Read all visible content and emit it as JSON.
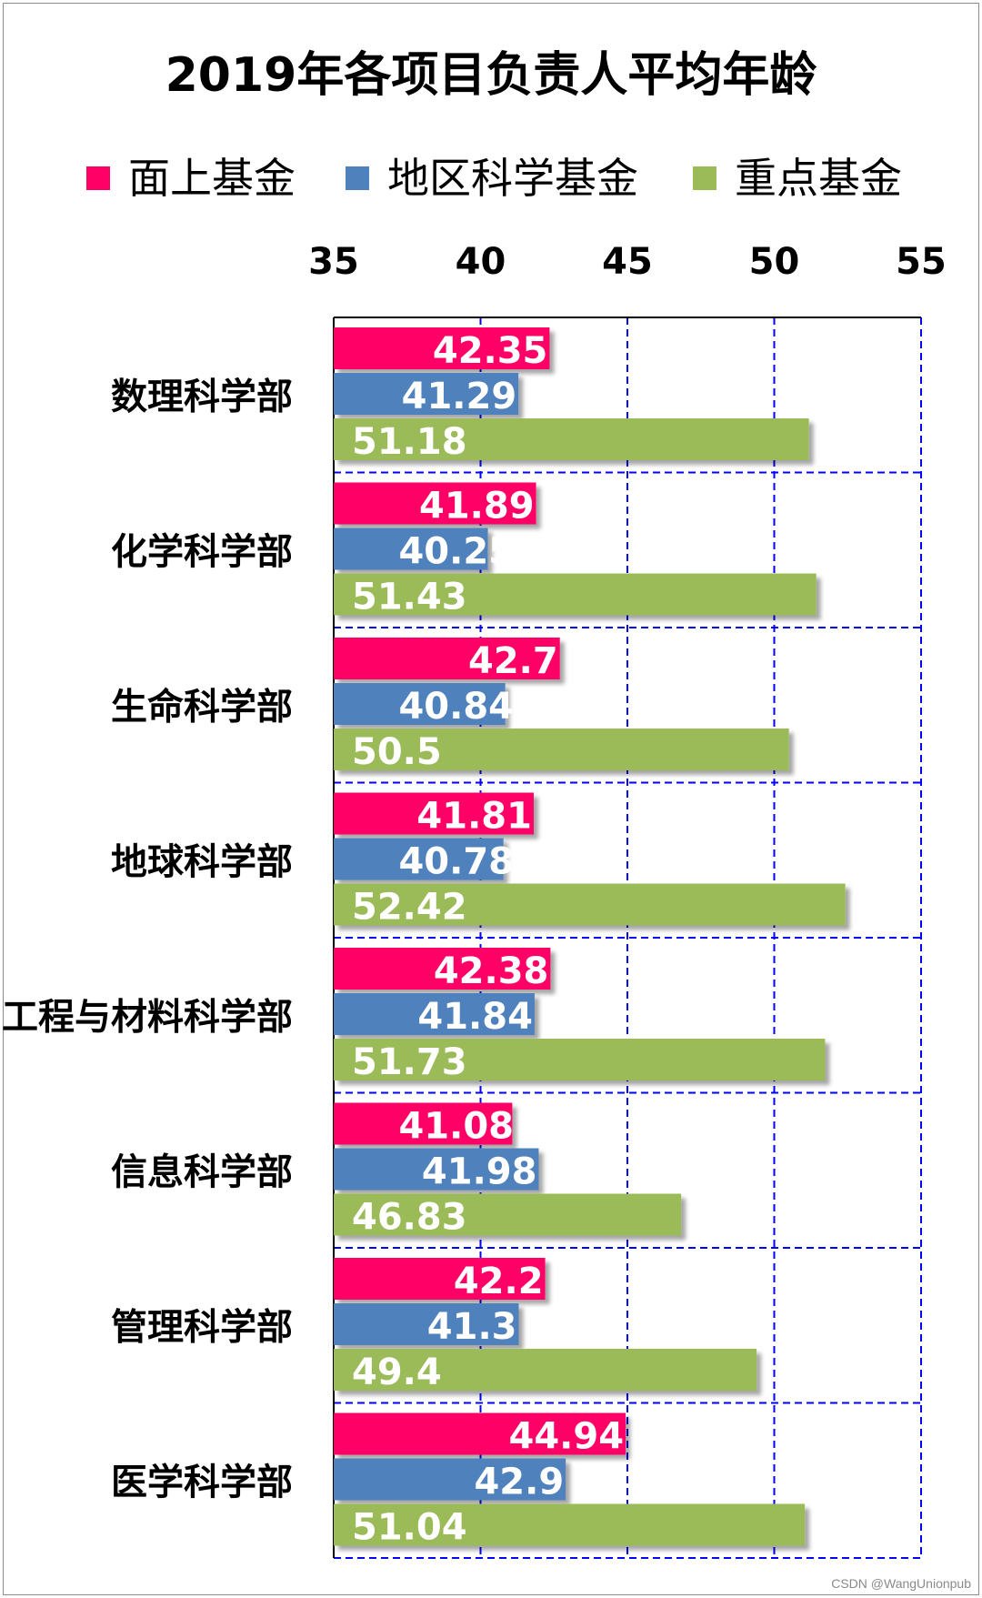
{
  "chart_data": {
    "type": "bar",
    "orientation": "horizontal",
    "title": "2019年各项目负责人平均年龄",
    "categories": [
      "数理科学部",
      "化学科学部",
      "生命科学部",
      "地球科学部",
      "工程与材料科学部",
      "信息科学部",
      "管理科学部",
      "医学科学部"
    ],
    "series": [
      {
        "name": "面上基金",
        "color": "#ff0066",
        "values": [
          42.35,
          41.89,
          42.7,
          41.81,
          42.38,
          41.08,
          42.2,
          44.94
        ]
      },
      {
        "name": "地区科学基金",
        "color": "#4f81bd",
        "values": [
          41.29,
          40.25,
          40.84,
          40.78,
          41.84,
          41.98,
          41.3,
          42.9
        ]
      },
      {
        "name": "重点基金",
        "color": "#9bbb59",
        "values": [
          51.18,
          51.43,
          50.5,
          52.42,
          51.73,
          46.83,
          49.4,
          51.04
        ]
      }
    ],
    "xlim": [
      35,
      55
    ],
    "xticks": [
      "35",
      "40",
      "45",
      "50",
      "55"
    ],
    "axis_position": "top",
    "legend_position": "top",
    "grid": true,
    "grid_color": "#0000ff"
  },
  "watermark": "CSDN @WangUnionpub"
}
